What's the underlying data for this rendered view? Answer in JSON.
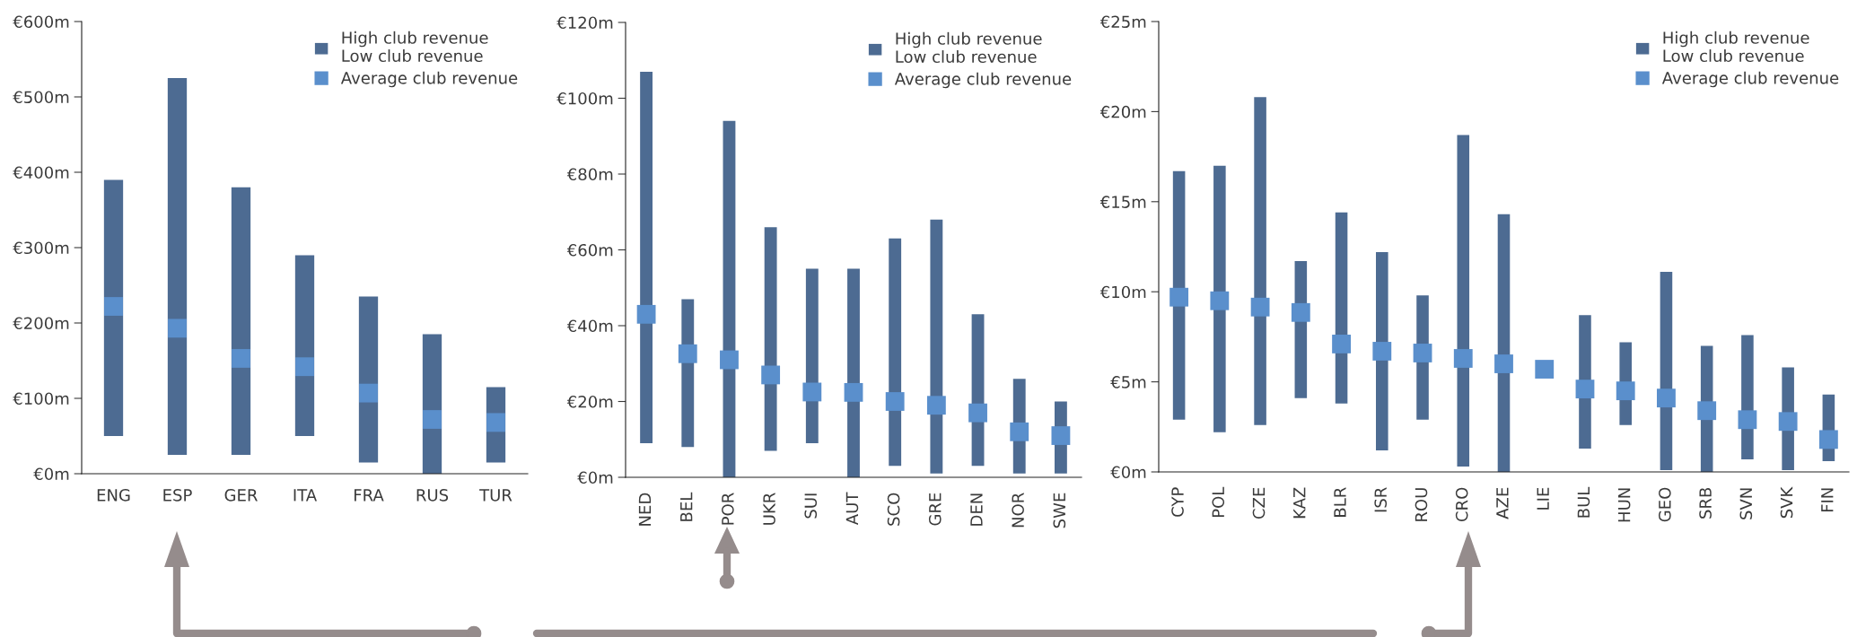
{
  "chart_data": [
    {
      "type": "bar",
      "categories": [
        "ENG",
        "ESP",
        "GER",
        "ITA",
        "FRA",
        "RUS",
        "TUR"
      ],
      "ylim": [
        0,
        600
      ],
      "yticks": [
        {
          "value": 0,
          "label": "€0m"
        },
        {
          "value": 100,
          "label": "€100m"
        },
        {
          "value": 200,
          "label": "€200m"
        },
        {
          "value": 300,
          "label": "€300m"
        },
        {
          "value": 400,
          "label": "€400m"
        },
        {
          "value": 500,
          "label": "€500m"
        },
        {
          "value": 600,
          "label": "€600m"
        }
      ],
      "legend": "top right",
      "grid": false,
      "series": [
        {
          "name": "High club revenue\nLow club revenue",
          "color": "#4d6b92",
          "base": [
            50,
            25,
            25,
            50,
            15,
            0,
            15
          ],
          "values": [
            340,
            500,
            355,
            240,
            220,
            185,
            100
          ]
        },
        {
          "name": "Average club revenue",
          "type": "scatter",
          "marker": "square",
          "color": "#5a8fcc",
          "values": [
            222,
            193,
            153,
            142,
            107,
            72,
            68
          ]
        }
      ]
    },
    {
      "type": "bar",
      "categories": [
        "NED",
        "BEL",
        "POR",
        "UKR",
        "SUI",
        "AUT",
        "SCO",
        "GRE",
        "DEN",
        "NOR",
        "SWE"
      ],
      "ylim": [
        0,
        120
      ],
      "yticks": [
        {
          "value": 0,
          "label": "€0m"
        },
        {
          "value": 20,
          "label": "€20m"
        },
        {
          "value": 40,
          "label": "€40m"
        },
        {
          "value": 60,
          "label": "€60m"
        },
        {
          "value": 80,
          "label": "€80m"
        },
        {
          "value": 100,
          "label": "€100m"
        },
        {
          "value": 120,
          "label": "€120m"
        }
      ],
      "legend": "top right",
      "grid": false,
      "series": [
        {
          "name": "High club revenue\nLow club revenue",
          "color": "#4d6b92",
          "base": [
            9,
            8,
            0,
            7,
            9,
            0,
            3,
            1,
            3,
            1,
            1
          ],
          "values": [
            98,
            39,
            94,
            59,
            46,
            55,
            60,
            67,
            40,
            25,
            19
          ]
        },
        {
          "name": "Average club revenue",
          "type": "scatter",
          "marker": "square",
          "color": "#5a8fcc",
          "values": [
            43,
            32.6,
            31,
            27,
            22.5,
            22.4,
            20,
            19,
            17,
            12,
            11
          ]
        }
      ]
    },
    {
      "type": "bar",
      "categories": [
        "CYP",
        "POL",
        "CZE",
        "KAZ",
        "BLR",
        "ISR",
        "ROU",
        "CRO",
        "AZE",
        "LIE",
        "BUL",
        "HUN",
        "GEO",
        "SRB",
        "SVN",
        "SVK",
        "FIN"
      ],
      "ylim": [
        0,
        25
      ],
      "yticks": [
        {
          "value": 0,
          "label": "€0m"
        },
        {
          "value": 5,
          "label": "€5m"
        },
        {
          "value": 10,
          "label": "€10m"
        },
        {
          "value": 15,
          "label": "€15m"
        },
        {
          "value": 20,
          "label": "€20m"
        },
        {
          "value": 25,
          "label": "€25m"
        }
      ],
      "legend": "top right",
      "grid": false,
      "series": [
        {
          "name": "High club revenue\nLow club revenue",
          "color": "#4d6b92",
          "base": [
            2.9,
            2.2,
            2.6,
            4.1,
            3.8,
            1.2,
            2.9,
            0.3,
            0,
            null,
            1.3,
            2.6,
            0.1,
            0,
            0.7,
            0.1,
            0.6
          ],
          "values": [
            13.8,
            14.8,
            18.2,
            7.6,
            10.6,
            11.0,
            6.9,
            18.4,
            14.3,
            null,
            7.4,
            4.6,
            11.0,
            7.0,
            6.9,
            5.7,
            3.7
          ]
        },
        {
          "name": "Average club revenue",
          "type": "scatter",
          "marker": "square",
          "color": "#5a8fcc",
          "values": [
            9.7,
            9.5,
            9.15,
            8.85,
            7.1,
            6.7,
            6.6,
            6.3,
            6.0,
            5.7,
            4.6,
            4.5,
            4.1,
            3.4,
            2.9,
            2.8,
            1.8
          ]
        }
      ]
    }
  ]
}
